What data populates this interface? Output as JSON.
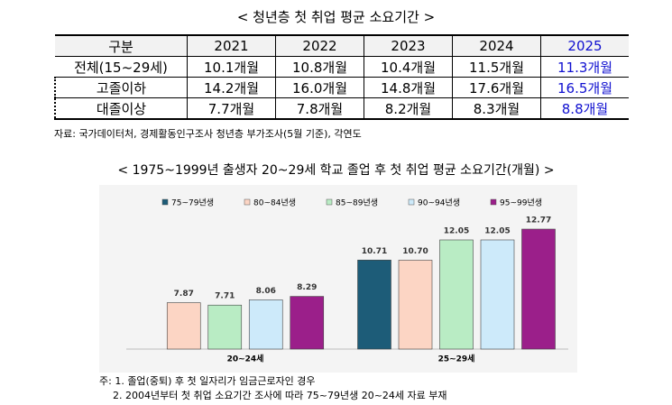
{
  "table_title": "< 청년층 첫 취업 평균 소요기간 >",
  "table": {
    "header": [
      "구분",
      "2021",
      "2022",
      "2023",
      "2024",
      "2025"
    ],
    "rows": [
      [
        "전체(15~29세)",
        "10.1개월",
        "10.8개월",
        "10.4개월",
        "11.5개월",
        "11.3개월"
      ],
      [
        "고졸이하",
        "14.2개월",
        "16.0개월",
        "14.8개월",
        "17.6개월",
        "16.5개월"
      ],
      [
        "대졸이상",
        "7.7개월",
        "7.8개월",
        "8.2개월",
        "8.3개월",
        "8.8개월"
      ]
    ]
  },
  "source": "자료: 국가데이터처, 경제활동인구조사 청년층 부가조사(5월 기준), 각연도",
  "chart_data": {
    "type": "bar",
    "title": "< 1975~1999년 출생자 20~29세 학교 졸업 후 첫 취업 평균 소요기간(개월) >",
    "categories": [
      "20~24세",
      "25~29세"
    ],
    "series": [
      {
        "name": "75~79년생",
        "color": "#1d5c78",
        "values": [
          null,
          10.71
        ],
        "value_labels": [
          null,
          "10.71"
        ]
      },
      {
        "name": "80~84년생",
        "color": "#fcd5c4",
        "values": [
          7.87,
          10.7
        ],
        "value_labels": [
          "7.87",
          "10.70"
        ]
      },
      {
        "name": "85~89년생",
        "color": "#b9ecc4",
        "values": [
          7.71,
          12.05
        ],
        "value_labels": [
          "7.71",
          "12.05"
        ]
      },
      {
        "name": "90~94년생",
        "color": "#cdeafa",
        "values": [
          8.06,
          12.05
        ],
        "value_labels": [
          "8.06",
          "12.05"
        ]
      },
      {
        "name": "95~99년생",
        "color": "#9b1f8a",
        "values": [
          8.29,
          12.77
        ],
        "value_labels": [
          "8.29",
          "12.77"
        ]
      }
    ]
  },
  "notes": [
    "주: 1. 졸업(중퇴) 후 첫 일자리가 임금근로자인 경우",
    "2. 2004년부터 첫 취업 소요기간 조사에 따라 75~79년생 20~24세 자료 부재"
  ]
}
